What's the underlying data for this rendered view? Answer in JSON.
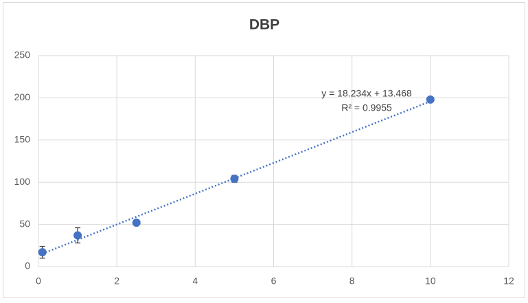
{
  "chart_data": {
    "type": "scatter",
    "title": "DBP",
    "series": [
      {
        "name": "DBP",
        "color": "#4472c4",
        "x": [
          0.1,
          1,
          2.5,
          5,
          10
        ],
        "values": [
          17,
          37,
          52,
          104,
          198
        ],
        "errors": [
          7,
          9,
          2,
          4,
          3
        ]
      }
    ],
    "trendline": {
      "slope": 18.234,
      "intercept": 13.468,
      "color": "#4472c4",
      "equation": "y = 18.234x + 13.468",
      "r2": "R² = 0.9955"
    },
    "xlim": [
      0,
      12
    ],
    "xticks": [
      0,
      2,
      4,
      6,
      8,
      10,
      12
    ],
    "ylim": [
      0,
      250
    ],
    "yticks": [
      0,
      50,
      100,
      150,
      200,
      250
    ],
    "grid": true
  }
}
